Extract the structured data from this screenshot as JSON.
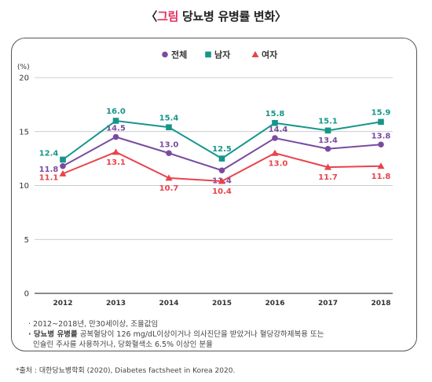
{
  "header": {
    "open_bracket": "〈",
    "title_accent": "그림",
    "title_rest": " 당뇨병 유병률 변화",
    "close_bracket": "〉"
  },
  "chart_data": {
    "type": "line",
    "categories": [
      "2012",
      "2013",
      "2014",
      "2015",
      "2016",
      "2017",
      "2018"
    ],
    "series": [
      {
        "name": "전체",
        "color": "#7b4aa0",
        "marker": "circle",
        "values": [
          11.8,
          14.5,
          13.0,
          11.4,
          14.4,
          13.4,
          13.8
        ]
      },
      {
        "name": "남자",
        "color": "#16968a",
        "marker": "square",
        "values": [
          12.4,
          16.0,
          15.4,
          12.5,
          15.8,
          15.1,
          15.9
        ]
      },
      {
        "name": "여자",
        "color": "#e8434c",
        "marker": "triangle",
        "values": [
          11.1,
          13.1,
          10.7,
          10.4,
          13.0,
          11.7,
          11.8
        ]
      }
    ],
    "ylabel": "(%)",
    "ylim": [
      0,
      20
    ],
    "yticks": [
      "0",
      "5",
      "10",
      "15",
      "20"
    ],
    "data_labels": {
      "전체": [
        "11.8",
        "14.5",
        "13.0",
        "11.4",
        "14.4",
        "13.4",
        "13.8"
      ],
      "남자": [
        "12.4",
        "16.0",
        "15.4",
        "12.5",
        "15.8",
        "15.1",
        "15.9"
      ],
      "여자": [
        "11.1",
        "13.1",
        "10.7",
        "10.4",
        "13.0",
        "11.7",
        "11.8"
      ]
    },
    "grid": true,
    "legend_position": "top-center"
  },
  "notes": {
    "line1": "· 2012~2018년, 만30세이상, 조율값임",
    "line2_bold": "· 당뇨병 유병률",
    "line2_rest": " 공복혈당이 126 mg/dL이상이거나 의사진단을 받았거나 혈당강하제복용 또는",
    "line3": "  인슐린 주사를 사용하거나, 당화혈색소 6.5% 이상인 분율"
  },
  "source": "*출처 : 대한당뇨병학회 (2020), Diabetes factsheet in Korea 2020."
}
